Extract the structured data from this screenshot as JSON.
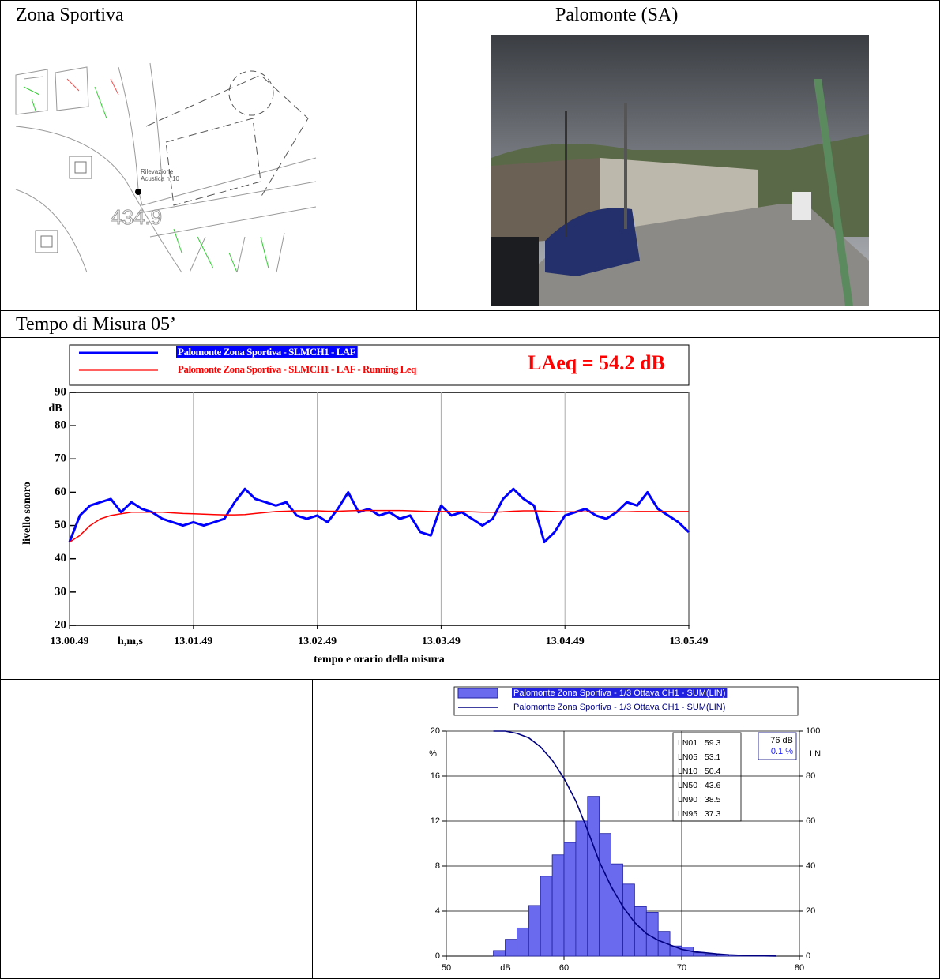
{
  "header": {
    "left": "Zona Sportiva",
    "right": "Palomonte (SA)"
  },
  "map": {
    "label": [
      "Rilevazione",
      "Acustica n°10"
    ],
    "elevation": "434.9"
  },
  "section_title": "Tempo di Misura 05’",
  "chart_data": [
    {
      "type": "line",
      "annotation": "LAeq = 54.2 dB",
      "x_label": "tempo e orario della misura",
      "x_unit": "h,m,s",
      "y_label": "livello sonoro",
      "y_unit": "dB",
      "xlim": [
        0,
        300
      ],
      "xticks": [
        {
          "value": 0,
          "label": "13.00.49"
        },
        {
          "value": 60,
          "label": "13.01.49"
        },
        {
          "value": 120,
          "label": "13.02.49"
        },
        {
          "value": 180,
          "label": "13.03.49"
        },
        {
          "value": 240,
          "label": "13.04.49"
        },
        {
          "value": 300,
          "label": "13.05.49"
        }
      ],
      "ylim": [
        20,
        90
      ],
      "yticks": [
        20,
        30,
        40,
        50,
        60,
        70,
        80,
        90
      ],
      "grid": "x",
      "x": [
        0,
        5,
        10,
        15,
        20,
        25,
        30,
        35,
        40,
        45,
        50,
        55,
        60,
        65,
        70,
        75,
        80,
        85,
        90,
        95,
        100,
        105,
        110,
        115,
        120,
        125,
        130,
        135,
        140,
        145,
        150,
        155,
        160,
        165,
        170,
        175,
        180,
        185,
        190,
        195,
        200,
        205,
        210,
        215,
        220,
        225,
        230,
        235,
        240,
        245,
        250,
        255,
        260,
        265,
        270,
        275,
        280,
        285,
        290,
        295,
        300
      ],
      "series": [
        {
          "name": "Palomonte Zona Sportiva - SLMCH1 - LAF",
          "color": "#0000ff",
          "values": [
            45,
            53,
            56,
            57,
            58,
            54,
            57,
            55,
            54,
            52,
            51,
            50,
            51,
            50,
            51,
            52,
            57,
            61,
            58,
            57,
            56,
            57,
            53,
            52,
            53,
            51,
            55,
            60,
            54,
            55,
            53,
            54,
            52,
            53,
            48,
            47,
            56,
            53,
            54,
            52,
            50,
            52,
            58,
            61,
            58,
            56,
            45,
            48,
            53,
            54,
            55,
            53,
            52,
            54,
            57,
            56,
            60,
            55,
            53,
            51,
            48
          ]
        },
        {
          "name": "Palomonte Zona Sportiva - SLMCH1 - LAF - Running Leq",
          "color": "#ff0000",
          "values": [
            45,
            47,
            50,
            52,
            53,
            53.5,
            54,
            54,
            54,
            54,
            53.8,
            53.6,
            53.5,
            53.4,
            53.3,
            53.2,
            53.2,
            53.3,
            53.6,
            53.9,
            54.2,
            54.3,
            54.4,
            54.4,
            54.4,
            54.3,
            54.3,
            54.4,
            54.5,
            54.5,
            54.5,
            54.5,
            54.5,
            54.4,
            54.3,
            54.2,
            54.2,
            54.2,
            54.2,
            54.1,
            54,
            54,
            54.1,
            54.3,
            54.4,
            54.4,
            54.3,
            54.2,
            54.1,
            54.1,
            54.1,
            54.1,
            54.1,
            54.1,
            54.1,
            54.2,
            54.2,
            54.2,
            54.2,
            54.2,
            54.2
          ]
        }
      ]
    },
    {
      "type": "histogram",
      "x_unit": "dB",
      "y_unit": "%",
      "y2_unit": "LN",
      "xlim": [
        50,
        80
      ],
      "xticks": [
        50,
        60,
        70,
        80
      ],
      "ylim": [
        0,
        20
      ],
      "yticks": [
        0,
        4,
        8,
        12,
        16,
        20
      ],
      "y2lim": [
        0,
        100
      ],
      "y2ticks": [
        0,
        20,
        40,
        60,
        80,
        100
      ],
      "grid": true,
      "bins": [
        54,
        55,
        56,
        57,
        58,
        59,
        60,
        61,
        62,
        63,
        64,
        65,
        66,
        67,
        68,
        69,
        70,
        71,
        72,
        73,
        74,
        75,
        76,
        77,
        78
      ],
      "series": [
        {
          "name": "Palomonte Zona Sportiva - 1/3 Ottava CH1 - SUM(LIN)",
          "color": "#6a6aee",
          "values": [
            0.5,
            1.5,
            2.5,
            4.5,
            7.1,
            9.0,
            10.1,
            12.0,
            14.2,
            10.9,
            8.2,
            6.4,
            4.4,
            3.9,
            2.2,
            0.9,
            0.8,
            0.3,
            0.2,
            0.15,
            0.1,
            0.05,
            0.05,
            0.05
          ]
        },
        {
          "name": "Palomonte Zona Sportiva - 1/3 Ottava CH1 - SUM(LIN)",
          "color": "#000080",
          "axis": "y2",
          "x": [
            54,
            55,
            56,
            57,
            58,
            59,
            60,
            61,
            62,
            63,
            64,
            65,
            66,
            67,
            68,
            69,
            70,
            71,
            72,
            73,
            74,
            75,
            76,
            77,
            78
          ],
          "values": [
            100,
            100,
            99,
            97,
            93,
            87,
            79,
            69,
            56,
            42,
            31,
            22,
            15,
            10,
            7,
            5,
            3,
            2,
            1.5,
            1,
            0.6,
            0.4,
            0.2,
            0.1,
            0
          ]
        }
      ],
      "stats": [
        "LN01 : 59.3",
        "LN05 : 53.1",
        "LN10 : 50.4",
        "LN50 : 43.6",
        "LN90 : 38.5",
        "LN95 : 37.3"
      ],
      "cursor": [
        "76 dB",
        "0.1 %"
      ]
    }
  ]
}
